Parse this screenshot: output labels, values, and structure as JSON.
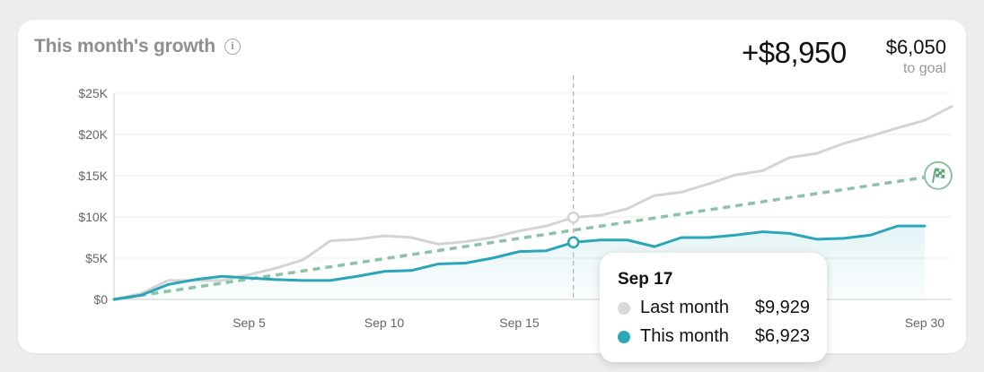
{
  "header": {
    "title": "This month's growth",
    "info_icon": "info-icon",
    "growth_value": "+$8,950",
    "to_goal_value": "$6,050",
    "to_goal_label": "to goal"
  },
  "tooltip": {
    "date": "Sep 17",
    "rows": [
      {
        "name": "Last month",
        "value": "$9,929",
        "color": "#d9d9d9"
      },
      {
        "name": "This month",
        "value": "$6,923",
        "color": "#2aa6b8"
      }
    ]
  },
  "colors": {
    "this_month": "#2aa6b8",
    "last_month": "#d4d4d4",
    "goal": "#8cc4a2",
    "grid": "#ececec"
  },
  "chart_data": {
    "type": "line",
    "title": "This month's growth",
    "xlabel": "",
    "ylabel": "",
    "x_tick_labels": [
      "Sep 5",
      "Sep 10",
      "Sep 15",
      "Sep 30"
    ],
    "x_tick_days": [
      5,
      10,
      15,
      30
    ],
    "y_tick_labels": [
      "$0",
      "$5K",
      "$10K",
      "$15K",
      "$20K",
      "$25K"
    ],
    "y_tick_values": [
      0,
      5000,
      10000,
      15000,
      20000,
      25000
    ],
    "xlim": [
      0,
      31
    ],
    "ylim": [
      0,
      25000
    ],
    "grid": "horizontal",
    "hover_day": 17,
    "goal_icon": "checkered-flag-icon",
    "series": [
      {
        "name": "Last month",
        "days": [
          0,
          1,
          2,
          3,
          4,
          5,
          6,
          7,
          8,
          9,
          10,
          11,
          12,
          13,
          14,
          15,
          16,
          17,
          18,
          19,
          20,
          21,
          22,
          23,
          24,
          25,
          26,
          27,
          28,
          29,
          30,
          31
        ],
        "values": [
          0,
          700,
          2300,
          2300,
          2300,
          3000,
          3800,
          4800,
          7100,
          7300,
          7700,
          7500,
          6700,
          7000,
          7500,
          8300,
          8900,
          9929,
          10200,
          11000,
          12600,
          13000,
          14000,
          15100,
          15600,
          17200,
          17700,
          18900,
          19800,
          20800,
          21700,
          23400
        ]
      },
      {
        "name": "This month",
        "days": [
          0,
          1,
          2,
          3,
          4,
          5,
          6,
          7,
          8,
          9,
          10,
          11,
          12,
          13,
          14,
          15,
          16,
          17,
          18,
          19,
          20,
          21,
          22,
          23,
          24,
          25,
          26,
          27,
          28,
          29,
          30
        ],
        "values": [
          0,
          500,
          1800,
          2400,
          2800,
          2600,
          2400,
          2300,
          2300,
          2800,
          3400,
          3500,
          4300,
          4400,
          5000,
          5800,
          5900,
          6923,
          7200,
          7200,
          6400,
          7500,
          7500,
          7800,
          8200,
          8000,
          7300,
          7400,
          7800,
          8900,
          8900
        ]
      },
      {
        "name": "Goal",
        "days": [
          0,
          30
        ],
        "values": [
          0,
          14800
        ]
      }
    ]
  }
}
